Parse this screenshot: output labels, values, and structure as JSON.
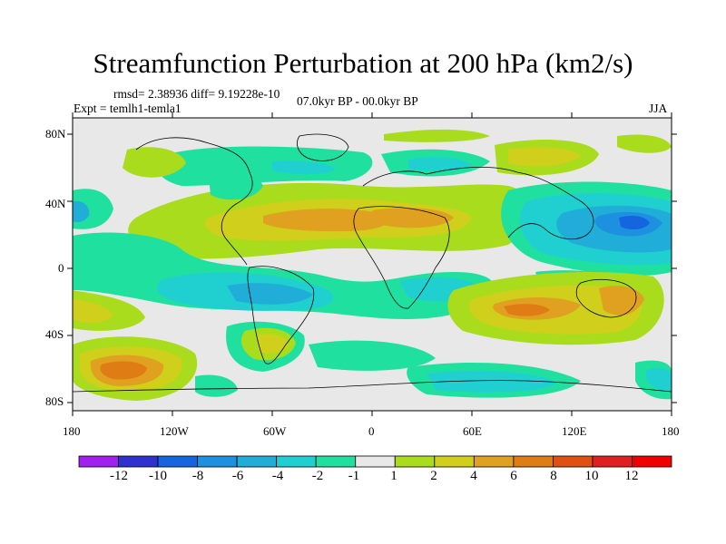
{
  "title": "Streamfunction Perturbation at 200 hPa (km2/s)",
  "stats": "rmsd= 2.38936 diff= 9.19228e-10",
  "experiment": "Expt = temlh1-temla1",
  "period": "07.0kyr BP - 00.0kyr BP",
  "season": "JJA",
  "lat_labels": [
    "80N",
    "40N",
    "0",
    "40S",
    "80S"
  ],
  "lon_labels": [
    "180",
    "120W",
    "60W",
    "0",
    "60E",
    "120E",
    "180"
  ],
  "colorbar": {
    "labels": [
      "-12",
      "-10",
      "-8",
      "-6",
      "-4",
      "-2",
      "-1",
      "1",
      "2",
      "4",
      "6",
      "8",
      "10",
      "12"
    ],
    "colors": [
      "#a020f0",
      "#3030d0",
      "#1565e0",
      "#1e90e0",
      "#20aed8",
      "#20d0d0",
      "#20e0a0",
      "#e8e8e8",
      "#a8dc1c",
      "#d0d01c",
      "#e0a020",
      "#e07c14",
      "#e05010",
      "#e02020",
      "#f00000"
    ]
  },
  "field_colors": {
    "n2": "#20e0a0",
    "n4": "#20d0d0",
    "n6": "#20aed8",
    "n8": "#1e90e0",
    "n10": "#1565e0",
    "p2": "#a8dc1c",
    "p4": "#d0d01c",
    "p6": "#e0a020",
    "p8": "#e07c14",
    "background": "#e8e8e8",
    "coast": "#000000"
  }
}
